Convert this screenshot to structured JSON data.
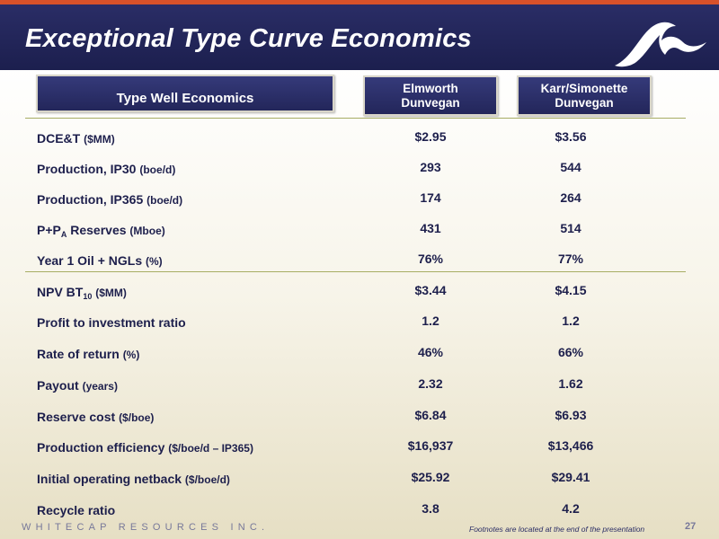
{
  "header": {
    "title": "Exceptional Type Curve Economics",
    "logo": "whitecap-wave-logo"
  },
  "table": {
    "title": "Type Well Economics",
    "columns": [
      {
        "line1": "Elmworth",
        "line2": "Dunvegan"
      },
      {
        "line1": "Karr/Simonette",
        "line2": "Dunvegan"
      }
    ],
    "rows": [
      {
        "label": "DCE&T ",
        "unit": "($MM)",
        "values": [
          "$2.95",
          "$3.56"
        ]
      },
      {
        "label": "Production, IP30 ",
        "unit": "(boe/d)",
        "values": [
          "293",
          "544"
        ]
      },
      {
        "label": "Production, IP365 ",
        "unit": "(boe/d)",
        "values": [
          "174",
          "264"
        ]
      },
      {
        "label_pre": "P+P",
        "label_sub": "A",
        "label_post": " Reserves ",
        "unit": "(Mboe)",
        "values": [
          "431",
          "514"
        ]
      },
      {
        "label": "Year 1 Oil + NGLs ",
        "unit": "(%)",
        "values": [
          "76%",
          "77%"
        ]
      },
      {
        "label_pre": "NPV BT",
        "label_sub": "10",
        "label_post": " ",
        "unit": "($MM)",
        "values": [
          "$3.44",
          "$4.15"
        ]
      },
      {
        "label": "Profit to investment ratio",
        "unit": "",
        "values": [
          "1.2",
          "1.2"
        ]
      },
      {
        "label": "Rate of return ",
        "unit": "(%)",
        "values": [
          "46%",
          "66%"
        ]
      },
      {
        "label": "Payout ",
        "unit": "(years)",
        "values": [
          "2.32",
          "1.62"
        ]
      },
      {
        "label": "Reserve cost ",
        "unit": "($/boe)",
        "values": [
          "$6.84",
          "$6.93"
        ]
      },
      {
        "label": "Production efficiency ",
        "unit": "($/boe/d – IP365)",
        "values": [
          "$16,937",
          "$13,466"
        ]
      },
      {
        "label": "Initial operating netback ",
        "unit": "($/boe/d)",
        "values": [
          "$25.92",
          "$29.41"
        ]
      },
      {
        "label": "Recycle ratio",
        "unit": "",
        "values": [
          "3.8",
          "4.2"
        ]
      }
    ]
  },
  "footer": {
    "company": "WHITECAP RESOURCES INC.",
    "note": "Footnotes are located at the end of the presentation",
    "page": "27"
  },
  "colors": {
    "navy": "#1d1f4c",
    "accent_orange": "#d8512a",
    "divider_olive": "#a7ad64"
  }
}
